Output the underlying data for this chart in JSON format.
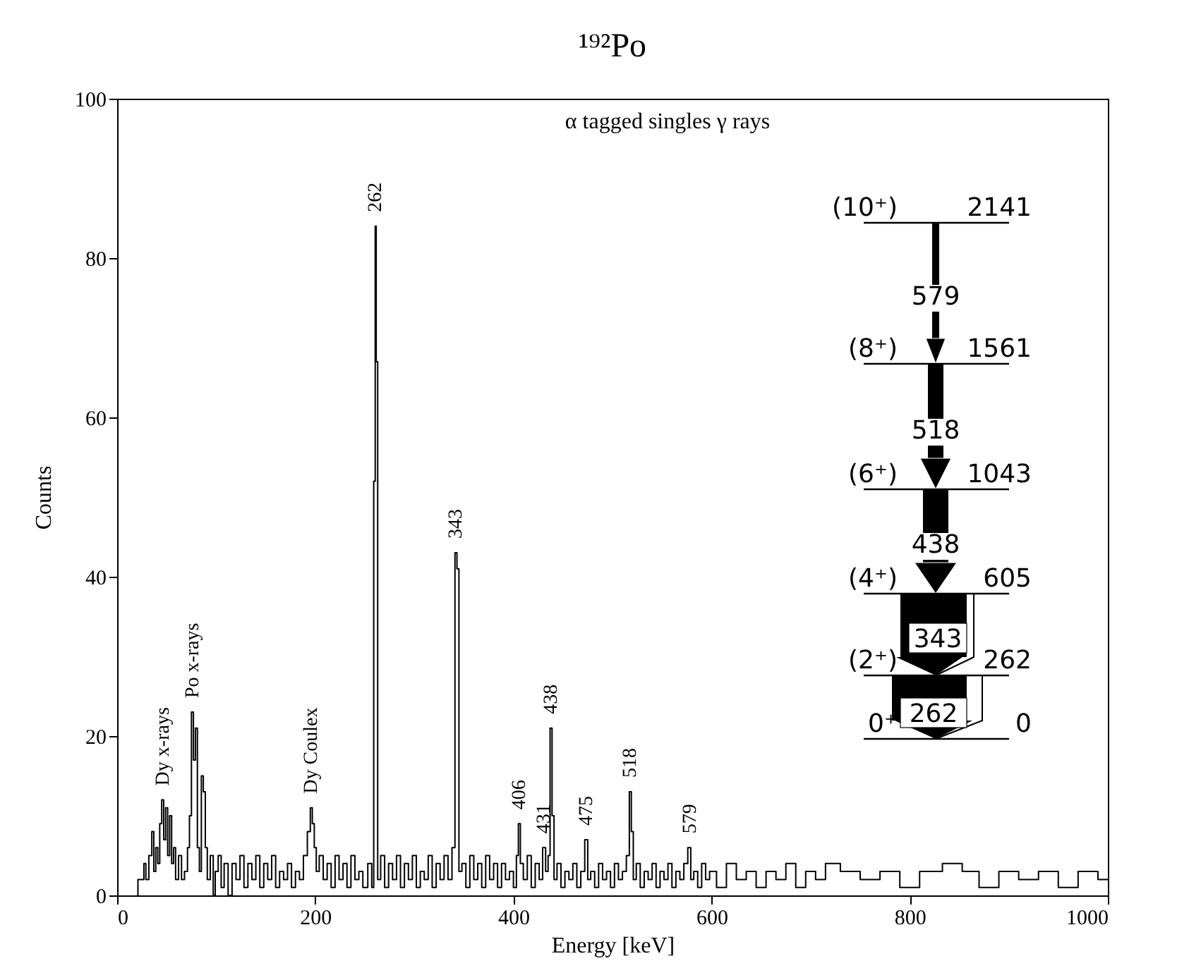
{
  "chart_data": {
    "type": "step",
    "title": "¹⁹²Po",
    "xlabel": "Energy [keV]",
    "ylabel": "Counts",
    "xlim": [
      0,
      1000
    ],
    "xticks": [
      0,
      200,
      400,
      600,
      800,
      1000
    ],
    "ylim": [
      0,
      100
    ],
    "yticks": [
      0,
      20,
      40,
      60,
      80,
      100
    ],
    "series": [
      {
        "color": "#000000",
        "x": [
          20,
          22,
          26,
          28,
          30,
          34,
          36,
          38,
          40,
          42,
          44,
          46,
          48,
          50,
          52,
          54,
          56,
          58,
          60,
          64,
          66,
          70,
          72,
          74,
          76,
          78,
          80,
          82,
          84,
          86,
          88,
          90,
          92,
          96,
          98,
          100,
          104,
          106,
          110,
          114,
          118,
          122,
          126,
          130,
          134,
          138,
          142,
          146,
          150,
          154,
          158,
          162,
          166,
          170,
          174,
          178,
          182,
          186,
          190,
          194,
          196,
          198,
          200,
          202,
          206,
          210,
          214,
          218,
          222,
          226,
          230,
          234,
          238,
          242,
          246,
          250,
          256,
          258,
          260,
          261,
          262,
          264,
          268,
          272,
          276,
          280,
          284,
          288,
          292,
          296,
          300,
          304,
          308,
          312,
          316,
          320,
          324,
          328,
          332,
          336,
          340,
          342,
          344,
          346,
          350,
          354,
          358,
          362,
          366,
          370,
          374,
          378,
          382,
          386,
          390,
          394,
          398,
          402,
          404,
          406,
          408,
          412,
          416,
          420,
          424,
          428,
          431,
          434,
          436,
          438,
          440,
          442,
          446,
          450,
          454,
          458,
          462,
          466,
          470,
          474,
          476,
          480,
          484,
          488,
          492,
          496,
          500,
          504,
          508,
          512,
          516,
          518,
          520,
          522,
          526,
          530,
          534,
          538,
          542,
          546,
          550,
          554,
          558,
          562,
          566,
          570,
          574,
          578,
          580,
          584,
          588,
          592,
          596,
          600,
          610,
          620,
          630,
          640,
          650,
          660,
          670,
          680,
          690,
          700,
          710,
          720,
          740,
          760,
          780,
          800,
          820,
          846,
          860,
          880,
          900,
          920,
          940,
          960,
          980,
          1000
        ],
        "values": [
          0,
          2,
          2,
          4,
          2,
          5,
          8,
          3,
          6,
          4,
          9,
          12,
          7,
          11,
          5,
          10,
          4,
          6,
          2,
          5,
          2,
          3,
          6,
          10,
          23,
          17,
          21,
          6,
          3,
          15,
          13,
          6,
          2,
          5,
          0,
          3,
          5,
          1,
          4,
          0,
          4,
          2,
          5,
          1,
          4,
          2,
          5,
          1,
          4,
          2,
          5,
          1,
          3,
          2,
          4,
          1,
          3,
          2,
          5,
          8,
          11,
          9,
          6,
          3,
          5,
          2,
          4,
          1,
          5,
          2,
          4,
          1,
          5,
          2,
          3,
          1,
          4,
          1,
          52,
          84,
          67,
          2,
          5,
          1,
          4,
          2,
          5,
          1,
          4,
          2,
          5,
          1,
          3,
          2,
          5,
          1,
          4,
          2,
          5,
          2,
          6,
          43,
          41,
          3,
          4,
          1,
          5,
          2,
          4,
          1,
          5,
          2,
          4,
          1,
          4,
          2,
          3,
          1,
          5,
          9,
          4,
          2,
          5,
          1,
          4,
          2,
          6,
          3,
          5,
          21,
          10,
          2,
          4,
          1,
          3,
          2,
          4,
          1,
          3,
          7,
          2,
          3,
          1,
          4,
          2,
          3,
          1,
          4,
          2,
          3,
          5,
          13,
          8,
          2,
          4,
          1,
          3,
          2,
          4,
          1,
          3,
          2,
          4,
          1,
          3,
          2,
          4,
          6,
          2,
          3,
          1,
          4,
          2,
          3,
          1,
          4,
          2,
          3,
          1,
          3,
          2,
          4,
          1,
          3,
          2,
          4,
          3,
          2,
          3,
          1,
          3,
          4,
          3,
          1,
          3,
          2,
          3,
          1,
          3,
          2
        ]
      }
    ],
    "annotations": [
      "α tagged singles γ rays",
      "(10⁺)",
      "2141",
      "(8⁺)",
      "1561",
      "(6⁺)",
      "1043",
      "(4⁺)",
      "605",
      "(2⁺)",
      "262",
      "0⁺",
      "0",
      "579",
      "518",
      "438",
      "343",
      "262",
      {
        "text": "Dy x-rays",
        "x": 46,
        "y": 12
      },
      {
        "text": "Po x-rays",
        "x": 76,
        "y": 23
      },
      {
        "text": "Dy Coulex",
        "x": 196,
        "y": 11
      },
      {
        "text": "262",
        "x": 261,
        "y": 84
      },
      {
        "text": "343",
        "x": 342,
        "y": 43
      },
      {
        "text": "406",
        "x": 406,
        "y": 9
      },
      {
        "text": "431",
        "x": 431,
        "y": 6
      },
      {
        "text": "438",
        "x": 438,
        "y": 21
      },
      {
        "text": "475",
        "x": 474,
        "y": 7
      },
      {
        "text": "518",
        "x": 518,
        "y": 13
      },
      {
        "text": "579",
        "x": 578,
        "y": 6
      }
    ]
  }
}
